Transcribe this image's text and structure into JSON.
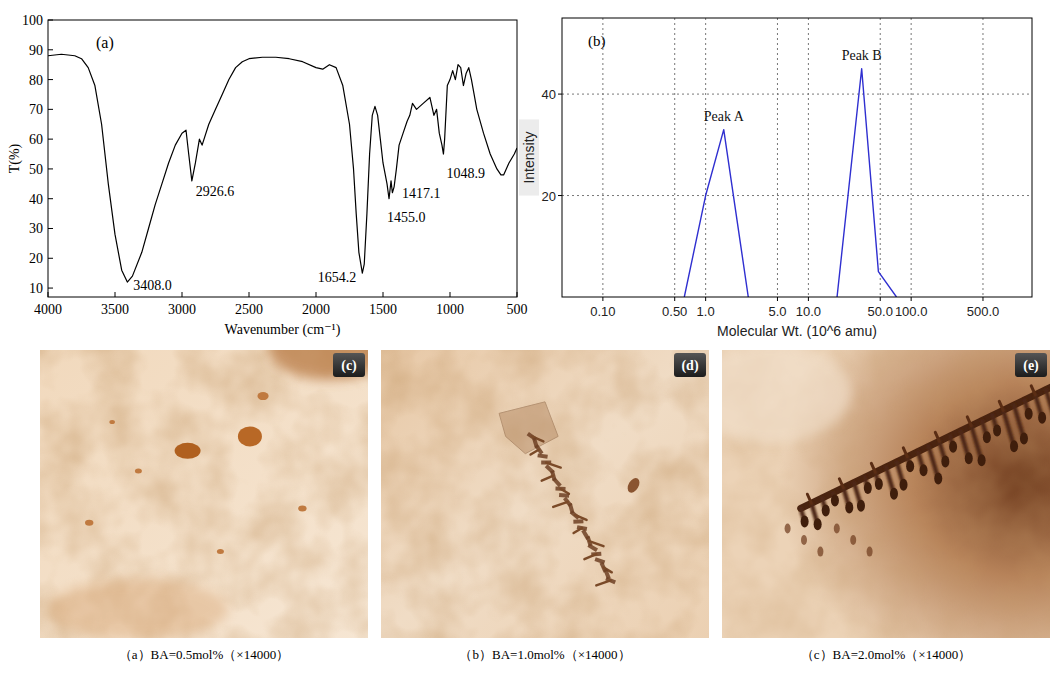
{
  "chart_data": [
    {
      "type": "line",
      "title": "(a)",
      "x_label": "Wavenumber (cm⁻¹)",
      "y_label": "T(%)",
      "color": "#000000",
      "grid": false,
      "x": [
        4000,
        3900,
        3800,
        3750,
        3700,
        3650,
        3600,
        3550,
        3500,
        3450,
        3408,
        3370,
        3300,
        3250,
        3200,
        3150,
        3100,
        3050,
        3000,
        2970,
        2950,
        2926.6,
        2900,
        2870,
        2850,
        2800,
        2750,
        2700,
        2650,
        2600,
        2550,
        2500,
        2400,
        2300,
        2200,
        2100,
        2000,
        1950,
        1900,
        1850,
        1800,
        1750,
        1720,
        1700,
        1680,
        1654.2,
        1640,
        1620,
        1600,
        1580,
        1560,
        1540,
        1520,
        1500,
        1470,
        1455,
        1440,
        1430,
        1417.1,
        1400,
        1380,
        1350,
        1320,
        1300,
        1280,
        1250,
        1200,
        1150,
        1120,
        1100,
        1080,
        1060,
        1048.9,
        1040,
        1020,
        1000,
        980,
        960,
        940,
        920,
        900,
        880,
        860,
        840,
        820,
        800,
        750,
        700,
        650,
        620,
        600,
        560,
        520,
        500
      ],
      "values": [
        88,
        88.5,
        88,
        87,
        84,
        78,
        65,
        45,
        28,
        16,
        12,
        14,
        22,
        30,
        38,
        45,
        52,
        58,
        62,
        63,
        55,
        46,
        52,
        60,
        58,
        65,
        70,
        75,
        80,
        84,
        86,
        87,
        87.5,
        87.5,
        87,
        86,
        84,
        83.5,
        85,
        84,
        78,
        65,
        50,
        35,
        22,
        15,
        18,
        35,
        55,
        68,
        71,
        68,
        60,
        52,
        45,
        40,
        46,
        42,
        44,
        50,
        58,
        62,
        66,
        68,
        72,
        70,
        72,
        74,
        68,
        70,
        62,
        58,
        55,
        60,
        78,
        80,
        83,
        80,
        85,
        84,
        78,
        82,
        84,
        80,
        75,
        70,
        62,
        55,
        50,
        48,
        48,
        52,
        55,
        57
      ],
      "xlim": [
        4000,
        500
      ],
      "ylim": [
        7,
        100
      ],
      "xticks": [
        4000,
        3500,
        3000,
        2500,
        2000,
        1500,
        1000,
        500
      ],
      "yticks": [
        10,
        20,
        30,
        40,
        50,
        60,
        70,
        80,
        90,
        100
      ],
      "annotations": [
        {
          "text": "3408.0",
          "x": 3408,
          "y": 12
        },
        {
          "text": "2926.6",
          "x": 2926.6,
          "y": 46
        },
        {
          "text": "1654.2",
          "x": 1654.2,
          "y": 15
        },
        {
          "text": "1455.0",
          "x": 1455,
          "y": 40
        },
        {
          "text": "1417.1",
          "x": 1417.1,
          "y": 44
        },
        {
          "text": "1048.9",
          "x": 1048.9,
          "y": 55
        }
      ]
    },
    {
      "type": "line",
      "title": "(b)",
      "x_label": "Molecular Wt. (10^6 amu)",
      "y_label": "Intensity",
      "log": "x",
      "grid": true,
      "series": [
        {
          "name": "Peak A",
          "color": "#2f2fd0",
          "x": [
            0.62,
            1.0,
            1.5,
            2.6
          ],
          "values": [
            0,
            20,
            33,
            0
          ]
        },
        {
          "name": "Peak B",
          "color": "#2f2fd0",
          "x": [
            19,
            33,
            48,
            72
          ],
          "values": [
            0,
            45,
            5,
            0
          ]
        }
      ],
      "xlim": [
        0.04,
        1500
      ],
      "ylim": [
        0,
        55
      ],
      "xticks": [
        {
          "value": 0.1,
          "label": "0.10"
        },
        {
          "value": 0.5,
          "label": "0.50"
        },
        {
          "value": 1,
          "label": "1.0"
        },
        {
          "value": 5,
          "label": "5.0"
        },
        {
          "value": 10,
          "label": "10.0"
        },
        {
          "value": 50,
          "label": "50.0"
        },
        {
          "value": 100,
          "label": "100.0"
        },
        {
          "value": 500,
          "label": "500.0"
        }
      ],
      "yticks": [
        20,
        40
      ]
    }
  ],
  "micrographs": [
    {
      "tag": "(c)",
      "caption": "（a）BA=0.5mol%（×14000）"
    },
    {
      "tag": "(d)",
      "caption": "（b）BA=1.0mol%（×14000）"
    },
    {
      "tag": "(e)",
      "caption": "（c）BA=2.0mol%（×14000）"
    }
  ]
}
